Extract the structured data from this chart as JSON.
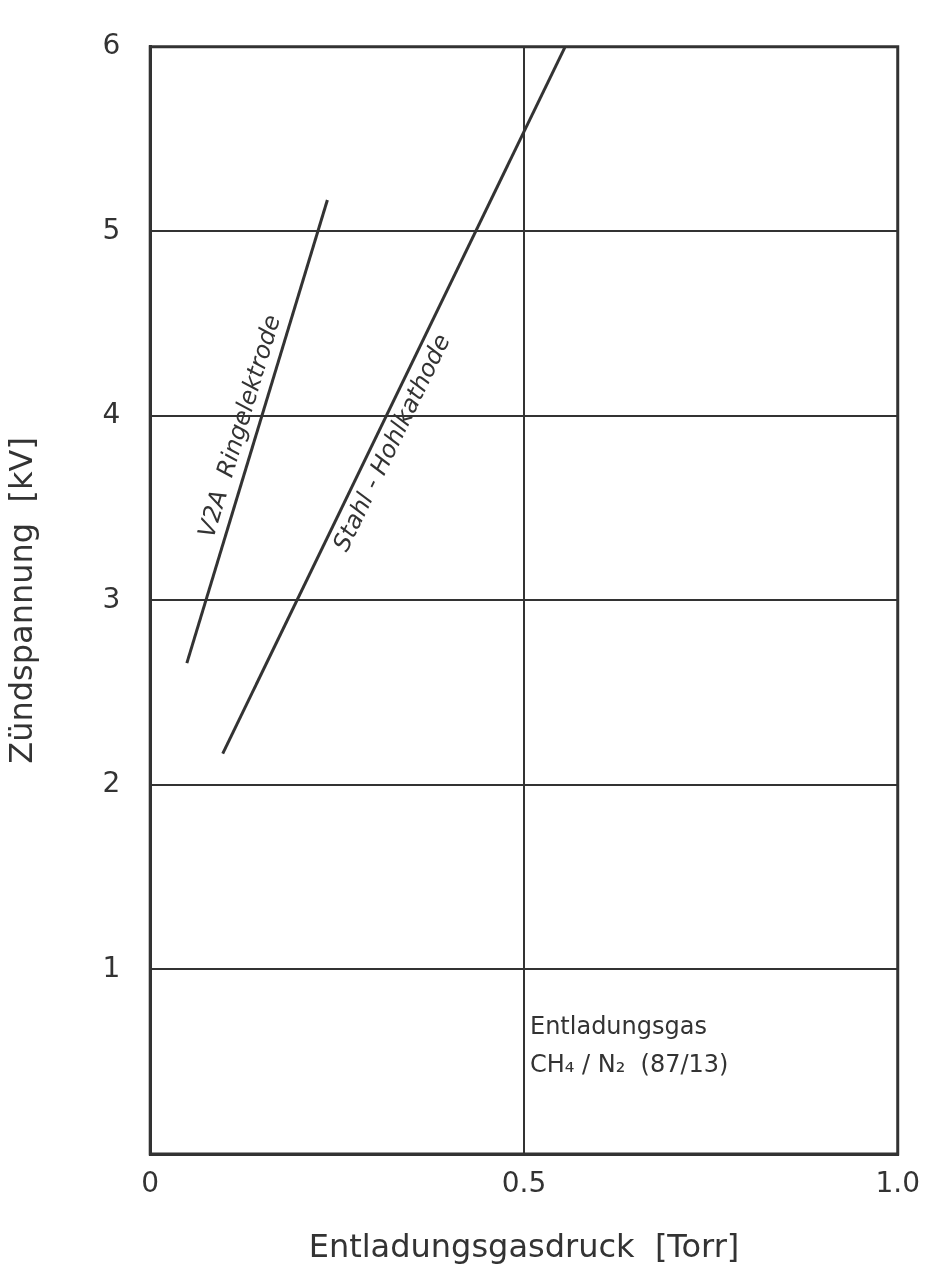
{
  "chart_data": {
    "type": "line",
    "xlabel": "Entladungsgasdruck  [Torr]",
    "ylabel": "Zündspannung  [kV]",
    "xlim": [
      0,
      1.0
    ],
    "ylim": [
      0,
      6
    ],
    "xticks": [
      0,
      0.5,
      {
        "value": 1.0,
        "label": "1.0"
      }
    ],
    "yticks": [
      1,
      2,
      3,
      4,
      5,
      6
    ],
    "grid": true,
    "legend": false,
    "marker": "none",
    "line_style": "solid",
    "series": [
      {
        "name": "V2A  Ringelektrode",
        "color": "#333333",
        "x": [
          0.049,
          0.237
        ],
        "values": [
          2.66,
          5.17
        ]
      },
      {
        "name": "Stahl - Hohlkathode",
        "color": "#333333",
        "x": [
          0.097,
          0.555
        ],
        "values": [
          2.17,
          6.0
        ]
      }
    ],
    "annotations": [
      "Entladungsgas",
      "CH₄ / N₂  (87/13)"
    ]
  }
}
